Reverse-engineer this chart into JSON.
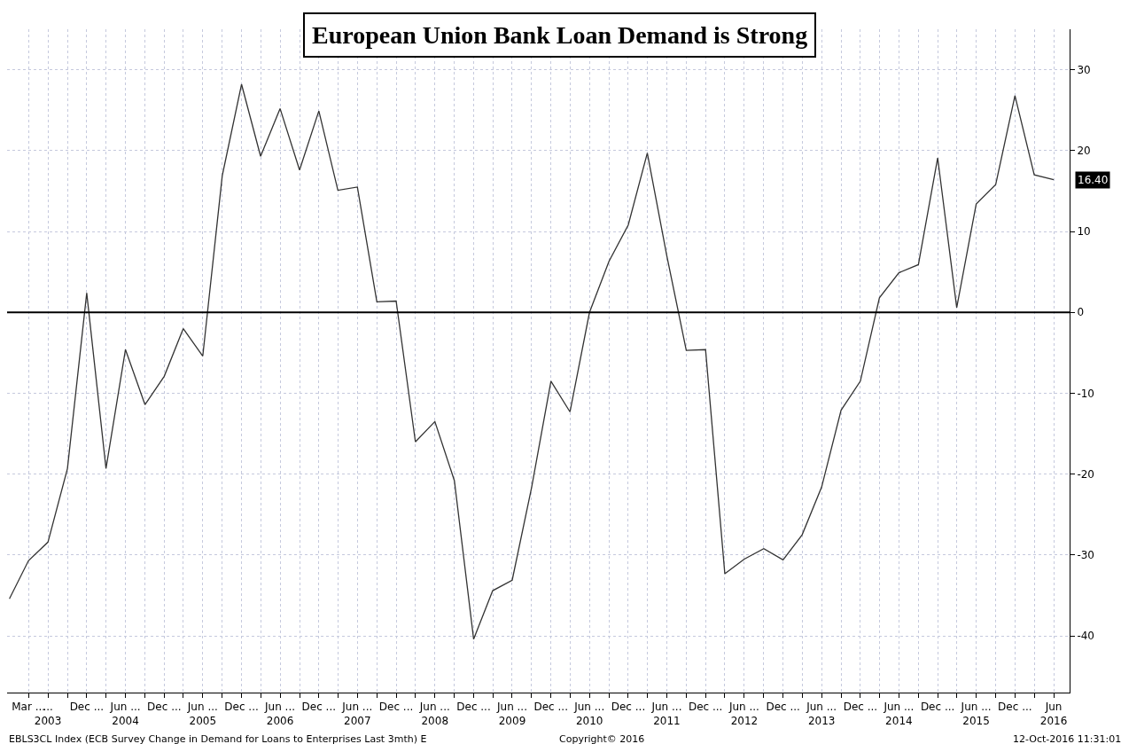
{
  "chart_data": {
    "type": "line",
    "title": "European Union Bank Loan Demand is Strong",
    "x": [
      "2002-12",
      "2003-03",
      "2003-06",
      "2003-09",
      "2003-12",
      "2004-03",
      "2004-06",
      "2004-09",
      "2004-12",
      "2005-03",
      "2005-06",
      "2005-09",
      "2005-12",
      "2006-03",
      "2006-06",
      "2006-09",
      "2006-12",
      "2007-03",
      "2007-06",
      "2007-09",
      "2007-12",
      "2008-03",
      "2008-06",
      "2008-09",
      "2008-12",
      "2009-03",
      "2009-06",
      "2009-09",
      "2009-12",
      "2010-03",
      "2010-06",
      "2010-09",
      "2010-12",
      "2011-03",
      "2011-06",
      "2011-09",
      "2011-12",
      "2012-03",
      "2012-06",
      "2012-09",
      "2012-12",
      "2013-03",
      "2013-06",
      "2013-09",
      "2013-12",
      "2014-03",
      "2014-06",
      "2014-09",
      "2014-12",
      "2015-03",
      "2015-06",
      "2015-09",
      "2015-12",
      "2016-03",
      "2016-06"
    ],
    "series": [
      {
        "color": "#333333",
        "values": [
          -35.4,
          -30.7,
          -28.4,
          -19.3,
          2.4,
          -19.3,
          -4.6,
          -11.4,
          -7.9,
          -2.0,
          -5.4,
          16.9,
          28.2,
          19.3,
          25.2,
          17.6,
          24.9,
          15.1,
          15.5,
          1.3,
          1.4,
          -16.0,
          -13.5,
          -20.8,
          -40.4,
          -34.4,
          -33.1,
          -21.6,
          -8.5,
          -12.3,
          0.0,
          6.3,
          10.8,
          19.7,
          7.0,
          -4.7,
          -4.6,
          -32.3,
          -30.5,
          -29.2,
          -30.6,
          -27.5,
          -21.6,
          -12.1,
          -8.5,
          1.8,
          4.9,
          5.9,
          19.1,
          0.6,
          13.4,
          15.8,
          26.8,
          17.0,
          16.4
        ]
      }
    ],
    "xlim": [
      "2002-11-20",
      "2016-08-15"
    ],
    "xticks": [
      {
        "value": "2003-03",
        "label": "Mar ..."
      },
      {
        "value": "2003-06",
        "label": "...\n2003"
      },
      {
        "value": "2003-09",
        "label": null
      },
      {
        "value": "2003-12",
        "label": "Dec ..."
      },
      {
        "value": "2004-03",
        "label": null
      },
      {
        "value": "2004-06",
        "label": "Jun ...\n2004"
      },
      {
        "value": "2004-09",
        "label": null
      },
      {
        "value": "2004-12",
        "label": "Dec ..."
      },
      {
        "value": "2005-03",
        "label": null
      },
      {
        "value": "2005-06",
        "label": "Jun ...\n2005"
      },
      {
        "value": "2005-09",
        "label": null
      },
      {
        "value": "2005-12",
        "label": "Dec ..."
      },
      {
        "value": "2006-03",
        "label": null
      },
      {
        "value": "2006-06",
        "label": "Jun ...\n2006"
      },
      {
        "value": "2006-09",
        "label": null
      },
      {
        "value": "2006-12",
        "label": "Dec ..."
      },
      {
        "value": "2007-03",
        "label": null
      },
      {
        "value": "2007-06",
        "label": "Jun ...\n2007"
      },
      {
        "value": "2007-09",
        "label": null
      },
      {
        "value": "2007-12",
        "label": "Dec ..."
      },
      {
        "value": "2008-03",
        "label": null
      },
      {
        "value": "2008-06",
        "label": "Jun ...\n2008"
      },
      {
        "value": "2008-09",
        "label": null
      },
      {
        "value": "2008-12",
        "label": "Dec ..."
      },
      {
        "value": "2009-03",
        "label": null
      },
      {
        "value": "2009-06",
        "label": "Jun ...\n2009"
      },
      {
        "value": "2009-09",
        "label": null
      },
      {
        "value": "2009-12",
        "label": "Dec ..."
      },
      {
        "value": "2010-03",
        "label": null
      },
      {
        "value": "2010-06",
        "label": "Jun ...\n2010"
      },
      {
        "value": "2010-09",
        "label": null
      },
      {
        "value": "2010-12",
        "label": "Dec ..."
      },
      {
        "value": "2011-03",
        "label": null
      },
      {
        "value": "2011-06",
        "label": "Jun ...\n2011"
      },
      {
        "value": "2011-09",
        "label": null
      },
      {
        "value": "2011-12",
        "label": "Dec ..."
      },
      {
        "value": "2012-03",
        "label": null
      },
      {
        "value": "2012-06",
        "label": "Jun ...\n2012"
      },
      {
        "value": "2012-09",
        "label": null
      },
      {
        "value": "2012-12",
        "label": "Dec ..."
      },
      {
        "value": "2013-03",
        "label": null
      },
      {
        "value": "2013-06",
        "label": "Jun ...\n2013"
      },
      {
        "value": "2013-09",
        "label": null
      },
      {
        "value": "2013-12",
        "label": "Dec ..."
      },
      {
        "value": "2014-03",
        "label": null
      },
      {
        "value": "2014-06",
        "label": "Jun ...\n2014"
      },
      {
        "value": "2014-09",
        "label": null
      },
      {
        "value": "2014-12",
        "label": "Dec ..."
      },
      {
        "value": "2015-03",
        "label": null
      },
      {
        "value": "2015-06",
        "label": "Jun ...\n2015"
      },
      {
        "value": "2015-09",
        "label": null
      },
      {
        "value": "2015-12",
        "label": "Dec ..."
      },
      {
        "value": "2016-03",
        "label": null
      },
      {
        "value": "2016-06",
        "label": "Jun\n2016"
      }
    ],
    "ylim": [
      -47,
      35
    ],
    "yticks": [
      -40,
      -30,
      -20,
      -10,
      0,
      10,
      20,
      30
    ],
    "ref_lines": [
      {
        "axis": "y",
        "value": 0,
        "color": "#000000"
      }
    ],
    "grid": true,
    "legend": false,
    "marker": "none",
    "line_style": "solid",
    "annotations": [
      {
        "text": "16.40",
        "x": "2016-06",
        "y": 16.4
      },
      "EBLS3CL Index (ECB Survey Change in Demand for Loans to Enterprises Last 3mth) E",
      "Copyright© 2016",
      "12-Oct-2016 11:31:01"
    ]
  }
}
